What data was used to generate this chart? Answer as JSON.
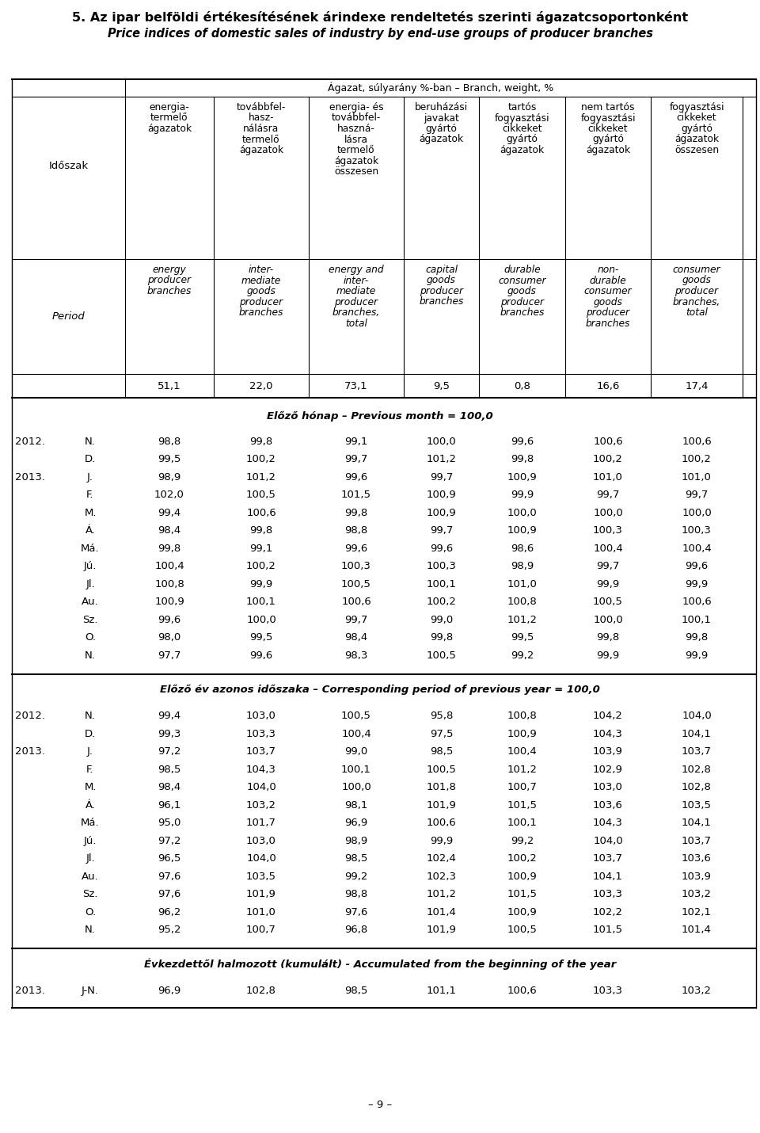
{
  "title1": "5. Az ipar belföldi értékesítésének árindexe rendeltetés szerinti ágazatcsoportonként",
  "title2": "Price indices of domestic sales of industry by end-use groups of producer branches",
  "col_headers_hu": [
    [
      "energia-",
      "termelő",
      "ágazatok"
    ],
    [
      "továbbfel-",
      "hasz-",
      "nálásra",
      "termelő",
      "ágazatok"
    ],
    [
      "energia- és",
      "továbbfel-",
      "haszná-",
      "lásra",
      "termelő",
      "ágazatok",
      "összesen"
    ],
    [
      "beruházási",
      "javakat",
      "gyártó",
      "ágazatok"
    ],
    [
      "tartós",
      "fogyasztási",
      "cikkeket",
      "gyártó",
      "ágazatok"
    ],
    [
      "nem tartós",
      "fogyasztási",
      "cikkeket",
      "gyártó",
      "ágazatok"
    ],
    [
      "fogyasztási",
      "cikkeket",
      "gyártó",
      "ágazatok",
      "összesen"
    ]
  ],
  "col_headers_en": [
    [
      "energy",
      "producer",
      "branches"
    ],
    [
      "inter-",
      "mediate",
      "goods",
      "producer",
      "branches"
    ],
    [
      "energy and",
      "inter-",
      "mediate",
      "producer",
      "branches,",
      "total"
    ],
    [
      "capital",
      "goods",
      "producer",
      "branches"
    ],
    [
      "durable",
      "consumer",
      "goods",
      "producer",
      "branches"
    ],
    [
      "non-",
      "durable",
      "consumer",
      "goods",
      "producer",
      "branches"
    ],
    [
      "consumer",
      "goods",
      "producer",
      "branches,",
      "total"
    ]
  ],
  "weights": [
    "51,1",
    "22,0",
    "73,1",
    "9,5",
    "0,8",
    "16,6",
    "17,4"
  ],
  "section1_hu": "Előző hónap",
  "section1_en": "Previous month",
  "section1_val": "100,0",
  "section2_hu": "Előző év azonos időszaka",
  "section2_en": "Corresponding period of previous year",
  "section2_val": "100,0",
  "section3_hu": "Évkezdettől halmozott (kumulált)",
  "section3_en": "Accumulated from the beginning of the year",
  "rows_section1": [
    [
      "2012.",
      "N.",
      "98,8",
      "99,8",
      "99,1",
      "100,0",
      "99,6",
      "100,6",
      "100,6"
    ],
    [
      "",
      "D.",
      "99,5",
      "100,2",
      "99,7",
      "101,2",
      "99,8",
      "100,2",
      "100,2"
    ],
    [
      "2013.",
      "J.",
      "98,9",
      "101,2",
      "99,6",
      "99,7",
      "100,9",
      "101,0",
      "101,0"
    ],
    [
      "",
      "F.",
      "102,0",
      "100,5",
      "101,5",
      "100,9",
      "99,9",
      "99,7",
      "99,7"
    ],
    [
      "",
      "M.",
      "99,4",
      "100,6",
      "99,8",
      "100,9",
      "100,0",
      "100,0",
      "100,0"
    ],
    [
      "",
      "Á.",
      "98,4",
      "99,8",
      "98,8",
      "99,7",
      "100,9",
      "100,3",
      "100,3"
    ],
    [
      "",
      "Má.",
      "99,8",
      "99,1",
      "99,6",
      "99,6",
      "98,6",
      "100,4",
      "100,4"
    ],
    [
      "",
      "Jú.",
      "100,4",
      "100,2",
      "100,3",
      "100,3",
      "98,9",
      "99,7",
      "99,6"
    ],
    [
      "",
      "Jl.",
      "100,8",
      "99,9",
      "100,5",
      "100,1",
      "101,0",
      "99,9",
      "99,9"
    ],
    [
      "",
      "Au.",
      "100,9",
      "100,1",
      "100,6",
      "100,2",
      "100,8",
      "100,5",
      "100,6"
    ],
    [
      "",
      "Sz.",
      "99,6",
      "100,0",
      "99,7",
      "99,0",
      "101,2",
      "100,0",
      "100,1"
    ],
    [
      "",
      "O.",
      "98,0",
      "99,5",
      "98,4",
      "99,8",
      "99,5",
      "99,8",
      "99,8"
    ],
    [
      "",
      "N.",
      "97,7",
      "99,6",
      "98,3",
      "100,5",
      "99,2",
      "99,9",
      "99,9"
    ]
  ],
  "rows_section2": [
    [
      "2012.",
      "N.",
      "99,4",
      "103,0",
      "100,5",
      "95,8",
      "100,8",
      "104,2",
      "104,0"
    ],
    [
      "",
      "D.",
      "99,3",
      "103,3",
      "100,4",
      "97,5",
      "100,9",
      "104,3",
      "104,1"
    ],
    [
      "2013.",
      "J.",
      "97,2",
      "103,7",
      "99,0",
      "98,5",
      "100,4",
      "103,9",
      "103,7"
    ],
    [
      "",
      "F.",
      "98,5",
      "104,3",
      "100,1",
      "100,5",
      "101,2",
      "102,9",
      "102,8"
    ],
    [
      "",
      "M.",
      "98,4",
      "104,0",
      "100,0",
      "101,8",
      "100,7",
      "103,0",
      "102,8"
    ],
    [
      "",
      "Á.",
      "96,1",
      "103,2",
      "98,1",
      "101,9",
      "101,5",
      "103,6",
      "103,5"
    ],
    [
      "",
      "Má.",
      "95,0",
      "101,7",
      "96,9",
      "100,6",
      "100,1",
      "104,3",
      "104,1"
    ],
    [
      "",
      "Jú.",
      "97,2",
      "103,0",
      "98,9",
      "99,9",
      "99,2",
      "104,0",
      "103,7"
    ],
    [
      "",
      "Jl.",
      "96,5",
      "104,0",
      "98,5",
      "102,4",
      "100,2",
      "103,7",
      "103,6"
    ],
    [
      "",
      "Au.",
      "97,6",
      "103,5",
      "99,2",
      "102,3",
      "100,9",
      "104,1",
      "103,9"
    ],
    [
      "",
      "Sz.",
      "97,6",
      "101,9",
      "98,8",
      "101,2",
      "101,5",
      "103,3",
      "103,2"
    ],
    [
      "",
      "O.",
      "96,2",
      "101,0",
      "97,6",
      "101,4",
      "100,9",
      "102,2",
      "102,1"
    ],
    [
      "",
      "N.",
      "95,2",
      "100,7",
      "96,8",
      "101,9",
      "100,5",
      "101,5",
      "101,4"
    ]
  ],
  "rows_section3": [
    [
      "2013.",
      "J-N.",
      "96,9",
      "102,8",
      "98,5",
      "101,1",
      "100,6",
      "103,3",
      "103,2"
    ]
  ],
  "footer": "– 9 –"
}
